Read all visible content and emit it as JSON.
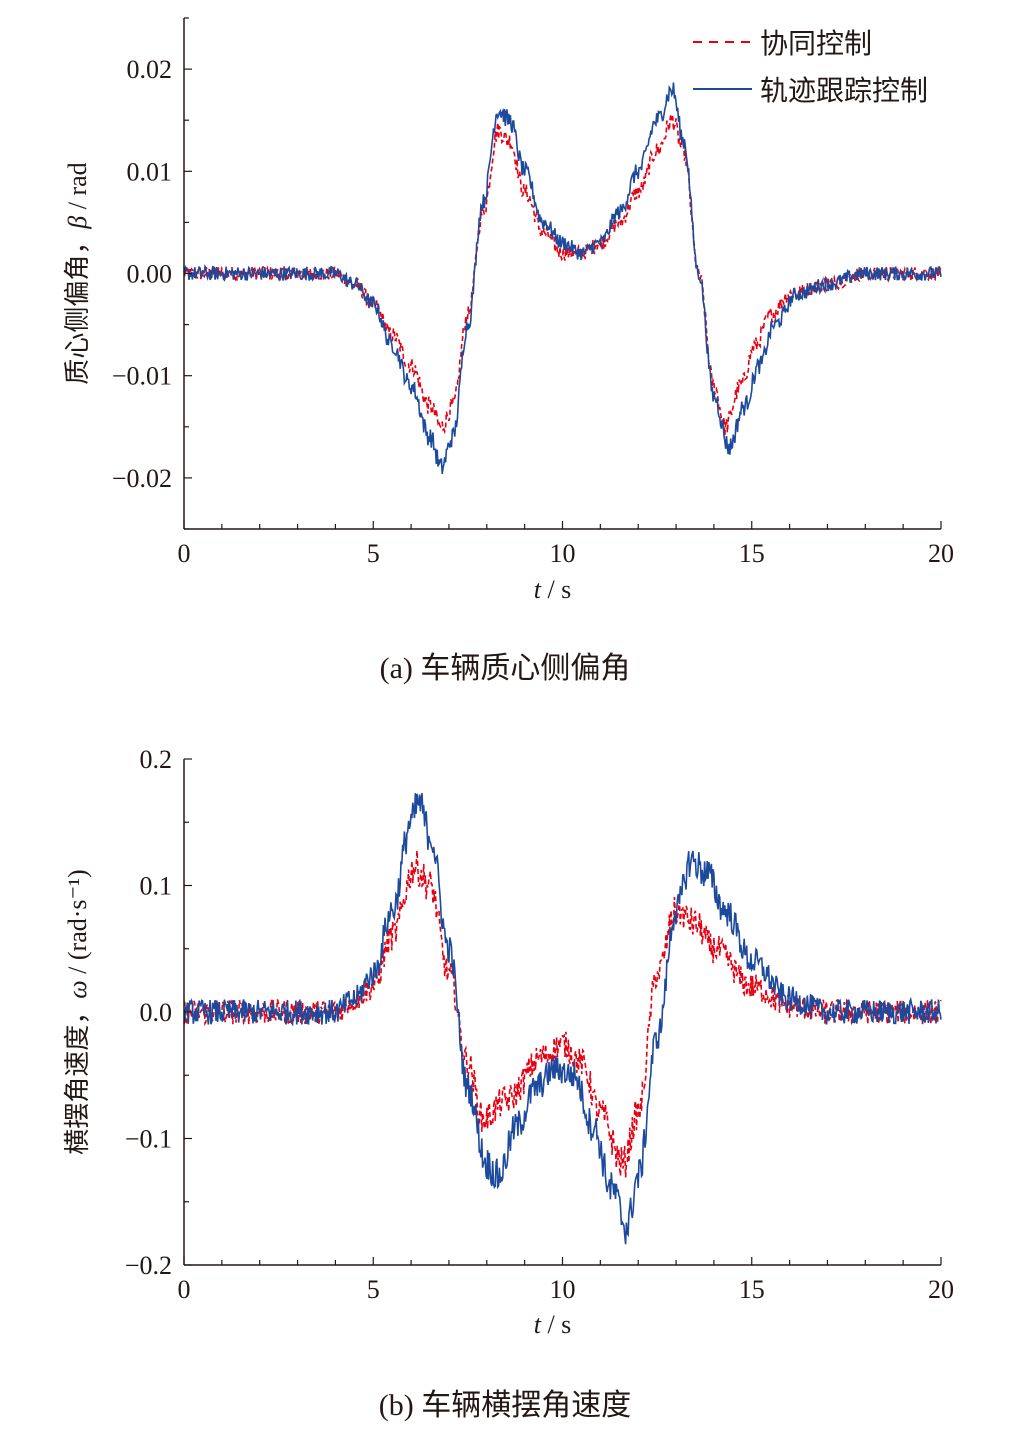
{
  "chart_data": [
    {
      "type": "line",
      "caption": "(a)  车辆质心侧偏角",
      "xlabel_var": "t",
      "xlabel_unit": " / s",
      "ylabel_prefix": "质心侧偏角，",
      "ylabel_var": "β",
      "ylabel_unit": " / rad",
      "xlim": [
        0,
        20
      ],
      "ylim": [
        -0.025,
        0.025
      ],
      "xticks": [
        0,
        5,
        10,
        15,
        20
      ],
      "xtick_labels": [
        "0",
        "5",
        "10",
        "15",
        "20"
      ],
      "yticks": [
        0.02,
        0.01,
        0.0,
        -0.01,
        -0.02
      ],
      "ytick_labels": [
        "0.02",
        "0.01",
        "0.00",
        "−0.01",
        "−0.02"
      ],
      "grid": false,
      "legend": {
        "placement": "top-right",
        "entries": [
          "协同控制",
          "轨迹跟踪控制"
        ]
      },
      "noise": 0.0007,
      "series": [
        {
          "name": "协同控制",
          "color": "#e60012",
          "style": "dashed",
          "t": [
            0,
            4,
            4.5,
            5,
            5.5,
            6,
            6.5,
            6.8,
            7.1,
            7.5,
            7.9,
            8.3,
            8.6,
            9,
            9.5,
            10,
            10.5,
            11,
            11.5,
            12,
            12.5,
            12.9,
            13.2,
            13.6,
            14,
            14.3,
            14.7,
            15.1,
            15.5,
            16,
            17,
            18,
            20
          ],
          "v": [
            0,
            0,
            -0.001,
            -0.003,
            -0.006,
            -0.009,
            -0.013,
            -0.015,
            -0.013,
            -0.004,
            0.006,
            0.014,
            0.013,
            0.008,
            0.004,
            0.002,
            0.002,
            0.003,
            0.005,
            0.008,
            0.012,
            0.015,
            0.012,
            0.0,
            -0.011,
            -0.015,
            -0.011,
            -0.007,
            -0.004,
            -0.002,
            -0.001,
            0,
            0
          ]
        },
        {
          "name": "轨迹跟踪控制",
          "color": "#1d4a9c",
          "style": "solid",
          "t": [
            0,
            4,
            4.5,
            5,
            5.5,
            6,
            6.5,
            6.8,
            7.1,
            7.5,
            7.9,
            8.3,
            8.6,
            9,
            9.5,
            10,
            10.5,
            11,
            11.5,
            12,
            12.5,
            12.9,
            13.2,
            13.6,
            14,
            14.4,
            14.8,
            15.2,
            15.6,
            16.2,
            17,
            18,
            20
          ],
          "v": [
            0,
            0,
            -0.001,
            -0.003,
            -0.007,
            -0.011,
            -0.016,
            -0.019,
            -0.016,
            -0.005,
            0.007,
            0.016,
            0.015,
            0.01,
            0.005,
            0.003,
            0.002,
            0.003,
            0.006,
            0.01,
            0.015,
            0.018,
            0.013,
            0.0,
            -0.012,
            -0.017,
            -0.013,
            -0.009,
            -0.005,
            -0.002,
            -0.001,
            0,
            0
          ]
        }
      ]
    },
    {
      "type": "line",
      "caption": "(b)  车辆横摆角速度",
      "xlabel_var": "t",
      "xlabel_unit": " / s",
      "ylabel_prefix": "横摆角速度，",
      "ylabel_var": "ω",
      "ylabel_unit": " / (rad·s⁻¹)",
      "xlim": [
        0,
        20
      ],
      "ylim": [
        -0.2,
        0.2
      ],
      "xticks": [
        0,
        5,
        10,
        15,
        20
      ],
      "xtick_labels": [
        "0",
        "5",
        "10",
        "15",
        "20"
      ],
      "yticks": [
        0.2,
        0.1,
        0.0,
        -0.1,
        -0.2
      ],
      "ytick_labels": [
        "0.2",
        "0.1",
        "0.0",
        "−0.1",
        "−0.2"
      ],
      "grid": false,
      "noise": 0.01,
      "series": [
        {
          "name": "协同控制",
          "color": "#e60012",
          "style": "dashed",
          "t": [
            0,
            4,
            4.5,
            5,
            5.5,
            6.1,
            6.5,
            7,
            7.5,
            7.9,
            8.5,
            9.5,
            10,
            10.5,
            11,
            11.6,
            12,
            12.5,
            13,
            13.5,
            14,
            15,
            16,
            17,
            20
          ],
          "v": [
            0,
            0,
            0.01,
            0.02,
            0.06,
            0.115,
            0.1,
            0.03,
            -0.04,
            -0.085,
            -0.07,
            -0.035,
            -0.025,
            -0.04,
            -0.08,
            -0.12,
            -0.08,
            0.03,
            0.08,
            0.07,
            0.05,
            0.02,
            0.005,
            0,
            0
          ]
        },
        {
          "name": "轨迹跟踪控制",
          "color": "#1d4a9c",
          "style": "solid",
          "t": [
            0,
            4,
            4.5,
            5,
            5.5,
            6,
            6.2,
            6.5,
            7,
            7.5,
            8,
            8.3,
            8.8,
            9.3,
            9.8,
            10.3,
            10.8,
            11.3,
            11.7,
            12,
            12.5,
            13,
            13.4,
            13.8,
            14.3,
            15,
            16,
            17,
            20
          ],
          "v": [
            0,
            0,
            0.01,
            0.03,
            0.08,
            0.15,
            0.165,
            0.14,
            0.05,
            -0.06,
            -0.12,
            -0.13,
            -0.09,
            -0.06,
            -0.045,
            -0.05,
            -0.09,
            -0.14,
            -0.17,
            -0.13,
            -0.02,
            0.08,
            0.12,
            0.11,
            0.08,
            0.04,
            0.01,
            0,
            0
          ]
        }
      ]
    }
  ]
}
